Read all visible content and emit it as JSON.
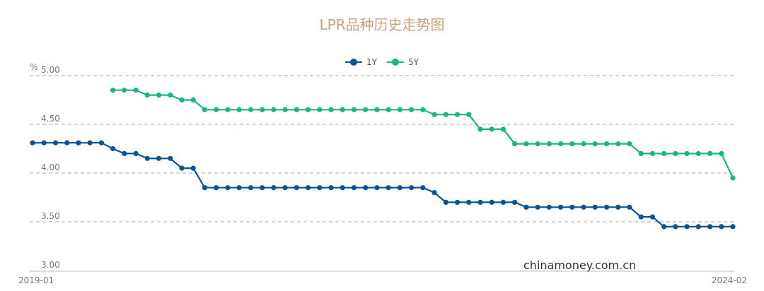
{
  "chart_data": {
    "type": "line",
    "title": "LPR品种历史走势图",
    "ylabel": "%",
    "ylim": [
      3.0,
      5.0
    ],
    "yticks": [
      "5.00",
      "4.50",
      "4.00",
      "3.50",
      "3.00"
    ],
    "x_start_label": "2019-01",
    "x_end_label": "2024-02",
    "grid": true,
    "legend_position": "top-center",
    "watermark": "chinamoney.com.cn",
    "series": [
      {
        "name": "1Y",
        "color": "#0b5394",
        "values": [
          4.31,
          4.31,
          4.31,
          4.31,
          4.31,
          4.31,
          4.31,
          4.25,
          4.2,
          4.2,
          4.15,
          4.15,
          4.15,
          4.05,
          4.05,
          3.85,
          3.85,
          3.85,
          3.85,
          3.85,
          3.85,
          3.85,
          3.85,
          3.85,
          3.85,
          3.85,
          3.85,
          3.85,
          3.85,
          3.85,
          3.85,
          3.85,
          3.85,
          3.85,
          3.85,
          3.8,
          3.7,
          3.7,
          3.7,
          3.7,
          3.7,
          3.7,
          3.7,
          3.65,
          3.65,
          3.65,
          3.65,
          3.65,
          3.65,
          3.65,
          3.65,
          3.65,
          3.65,
          3.55,
          3.55,
          3.45,
          3.45,
          3.45,
          3.45,
          3.45,
          3.45,
          3.45
        ]
      },
      {
        "name": "5Y",
        "color": "#1ab77b",
        "values": [
          null,
          null,
          null,
          null,
          null,
          null,
          null,
          4.85,
          4.85,
          4.85,
          4.8,
          4.8,
          4.8,
          4.75,
          4.75,
          4.65,
          4.65,
          4.65,
          4.65,
          4.65,
          4.65,
          4.65,
          4.65,
          4.65,
          4.65,
          4.65,
          4.65,
          4.65,
          4.65,
          4.65,
          4.65,
          4.65,
          4.65,
          4.65,
          4.65,
          4.6,
          4.6,
          4.6,
          4.6,
          4.45,
          4.45,
          4.45,
          4.3,
          4.3,
          4.3,
          4.3,
          4.3,
          4.3,
          4.3,
          4.3,
          4.3,
          4.3,
          4.3,
          4.2,
          4.2,
          4.2,
          4.2,
          4.2,
          4.2,
          4.2,
          4.2,
          3.95
        ]
      }
    ]
  }
}
